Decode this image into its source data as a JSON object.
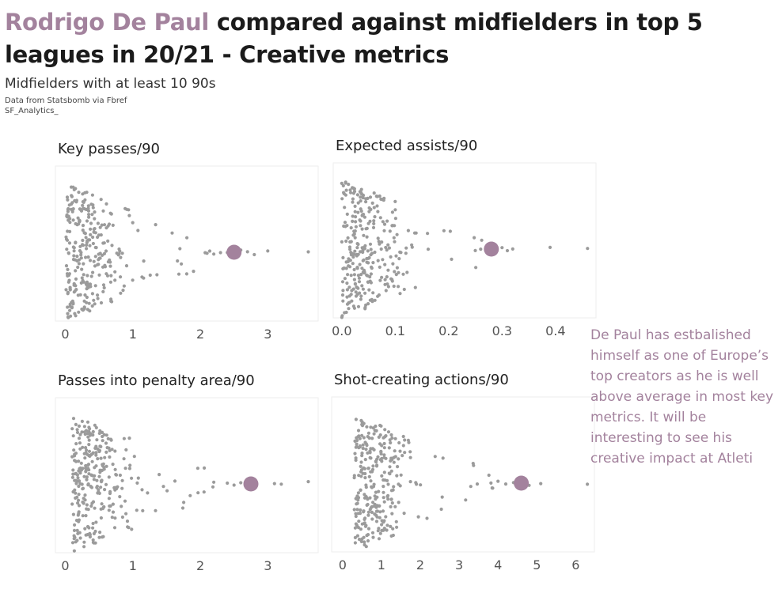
{
  "title": {
    "highlight": "Rodrigo De Paul",
    "rest": "compared against midfielders in top 5 leagues in 20/21 - Creative metrics"
  },
  "subtitle": "Midfielders with at least 10 90s",
  "source": "Data from Statsbomb via Fbref",
  "author": "SF_Analytics_",
  "note": "De Paul has estbalished himself as one of Europe’s top creators as he is well above average in most key metrics. It will be interesting to see his creative impact at Atleti",
  "colors": {
    "highlight": "#a3829d",
    "dots": "#9b9b9b",
    "grid": "#eeeeee",
    "title": "#1b1b1b"
  },
  "chart_data": [
    {
      "type": "scatter",
      "style": "beeswarm",
      "title": "Key passes/90",
      "xlim": [
        -0.1,
        3.7
      ],
      "xticks": [
        "0",
        "1",
        "2",
        "3"
      ],
      "highlight": {
        "player": "Rodrigo De Paul",
        "value": 2.5
      },
      "others": {
        "count": 300,
        "range": [
          0.0,
          3.6
        ],
        "outliers": [
          2.1,
          2.2,
          2.3,
          2.4,
          2.6,
          2.7,
          2.8,
          3.0,
          3.6
        ]
      }
    },
    {
      "type": "scatter",
      "style": "beeswarm",
      "title": "Expected assists/90",
      "xlim": [
        -0.01,
        0.47
      ],
      "xticks": [
        "0.0",
        "0.1",
        "0.2",
        "0.3",
        "0.4"
      ],
      "highlight": {
        "player": "Rodrigo De Paul",
        "value": 0.28
      },
      "others": {
        "count": 300,
        "range": [
          0.0,
          0.46
        ],
        "outliers": [
          0.25,
          0.26,
          0.3,
          0.31,
          0.32,
          0.39,
          0.46
        ]
      }
    },
    {
      "type": "scatter",
      "style": "beeswarm",
      "title": "Passes into penalty area/90",
      "xlim": [
        -0.1,
        3.7
      ],
      "xticks": [
        "0",
        "1",
        "2",
        "3"
      ],
      "highlight": {
        "player": "Rodrigo De Paul",
        "value": 2.75
      },
      "others": {
        "count": 300,
        "range": [
          0.1,
          3.6
        ],
        "outliers": [
          2.2,
          2.4,
          2.5,
          2.6,
          3.1,
          3.2,
          3.6
        ]
      }
    },
    {
      "type": "scatter",
      "style": "beeswarm",
      "title": "Shot-creating actions/90",
      "xlim": [
        -0.2,
        6.4
      ],
      "xticks": [
        "0",
        "1",
        "2",
        "3",
        "4",
        "5",
        "6"
      ],
      "highlight": {
        "player": "Rodrigo De Paul",
        "value": 4.6
      },
      "others": {
        "count": 300,
        "range": [
          0.3,
          6.3
        ],
        "outliers": [
          4.0,
          4.2,
          4.4,
          4.8,
          5.1,
          6.3
        ]
      }
    }
  ]
}
